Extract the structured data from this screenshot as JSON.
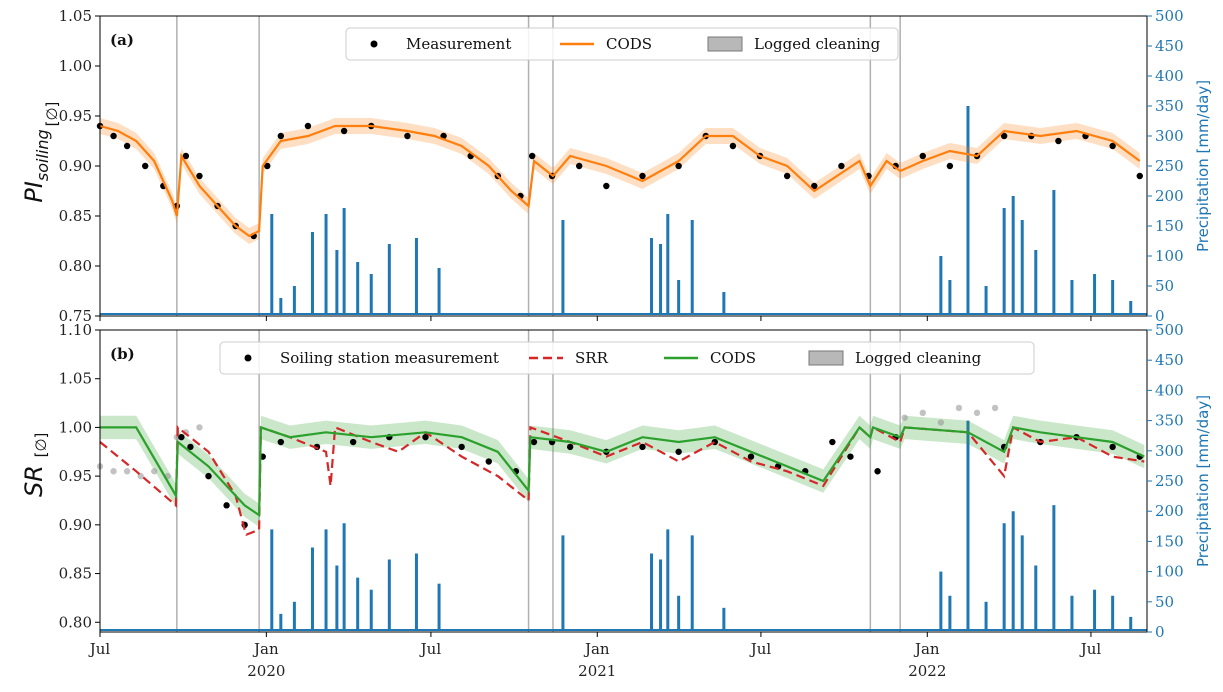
{
  "colors": {
    "measurement": "#000000",
    "cods_a": "#ff7f0e",
    "cods_b": "#2ca02c",
    "srr": "#d62728",
    "precip": "#1f77b4",
    "cleaning": "#b0b0b0",
    "ghost": "#9a9a9a"
  },
  "x_axis": {
    "ticks": [
      {
        "label": "Jul",
        "year": "",
        "day": 0
      },
      {
        "label": "Jan",
        "year": "2020",
        "day": 184
      },
      {
        "label": "Jul",
        "year": "",
        "day": 366
      },
      {
        "label": "Jan",
        "year": "2021",
        "day": 550
      },
      {
        "label": "Jul",
        "year": "",
        "day": 731
      },
      {
        "label": "Jan",
        "year": "2022",
        "day": 915
      },
      {
        "label": "Jul",
        "year": "",
        "day": 1096
      }
    ],
    "range_days": [
      0,
      1158
    ]
  },
  "chart_data": [
    {
      "type": "scatter",
      "panel_label": "(a)",
      "ylabel": "PI",
      "ylabel_sub": "soiling",
      "ylabel_unit": "[∅]",
      "ylim": [
        0.75,
        1.05
      ],
      "yticks": [
        "0.75",
        "0.80",
        "0.85",
        "0.90",
        "0.95",
        "1.00",
        "1.05"
      ],
      "y2label": "Precipitation [mm/day]",
      "y2lim": [
        0,
        500
      ],
      "y2ticks": [
        "0",
        "50",
        "100",
        "150",
        "200",
        "250",
        "300",
        "350",
        "400",
        "450",
        "500"
      ],
      "legend": [
        {
          "kind": "dot",
          "label": "Measurement"
        },
        {
          "kind": "line",
          "label": "CODS"
        },
        {
          "kind": "patch",
          "label": "Logged cleaning"
        }
      ],
      "cleaning_days": [
        85,
        176,
        474,
        501,
        852,
        885
      ],
      "series": [
        {
          "name": "Measurement",
          "kind": "points",
          "x": [
            0,
            15,
            30,
            50,
            70,
            85,
            95,
            110,
            130,
            150,
            170,
            185,
            200,
            230,
            270,
            300,
            340,
            380,
            410,
            440,
            465,
            478,
            500,
            530,
            560,
            600,
            640,
            670,
            700,
            730,
            760,
            790,
            820,
            850,
            880,
            910,
            940,
            970,
            1000,
            1030,
            1060,
            1090,
            1120,
            1150
          ],
          "y": [
            0.94,
            0.93,
            0.92,
            0.9,
            0.88,
            0.86,
            0.91,
            0.89,
            0.86,
            0.84,
            0.83,
            0.9,
            0.93,
            0.94,
            0.935,
            0.94,
            0.93,
            0.93,
            0.91,
            0.89,
            0.87,
            0.91,
            0.89,
            0.9,
            0.88,
            0.89,
            0.9,
            0.93,
            0.92,
            0.91,
            0.89,
            0.88,
            0.9,
            0.89,
            0.9,
            0.91,
            0.9,
            0.91,
            0.93,
            0.93,
            0.925,
            0.93,
            0.92,
            0.89
          ]
        },
        {
          "name": "CODS",
          "kind": "line",
          "x": [
            0,
            20,
            40,
            60,
            80,
            85,
            90,
            110,
            130,
            150,
            165,
            176,
            180,
            200,
            230,
            260,
            300,
            340,
            370,
            400,
            430,
            455,
            474,
            480,
            501,
            520,
            560,
            600,
            640,
            670,
            700,
            730,
            760,
            790,
            815,
            840,
            852,
            870,
            885,
            910,
            940,
            970,
            1000,
            1040,
            1080,
            1120,
            1150
          ],
          "y": [
            0.94,
            0.935,
            0.925,
            0.905,
            0.865,
            0.85,
            0.91,
            0.88,
            0.86,
            0.84,
            0.83,
            0.835,
            0.9,
            0.925,
            0.93,
            0.94,
            0.94,
            0.935,
            0.93,
            0.92,
            0.9,
            0.875,
            0.86,
            0.905,
            0.89,
            0.91,
            0.9,
            0.885,
            0.905,
            0.93,
            0.93,
            0.91,
            0.9,
            0.875,
            0.89,
            0.905,
            0.88,
            0.905,
            0.895,
            0.905,
            0.915,
            0.91,
            0.935,
            0.93,
            0.935,
            0.925,
            0.905
          ]
        },
        {
          "name": "Precipitation",
          "kind": "bars",
          "axis": "right",
          "x": [
            190,
            200,
            215,
            235,
            250,
            262,
            270,
            285,
            300,
            320,
            350,
            375,
            512,
            545,
            610,
            620,
            628,
            640,
            655,
            690,
            930,
            940,
            960,
            980,
            1000,
            1010,
            1020,
            1035,
            1055,
            1075,
            1100,
            1120,
            1140
          ],
          "y": [
            170,
            30,
            50,
            140,
            170,
            110,
            180,
            90,
            70,
            120,
            130,
            80,
            160,
            5,
            130,
            120,
            170,
            60,
            160,
            40,
            100,
            60,
            350,
            50,
            180,
            200,
            160,
            110,
            210,
            60,
            70,
            60,
            25
          ]
        }
      ]
    },
    {
      "type": "scatter",
      "panel_label": "(b)",
      "ylabel": "SR",
      "ylabel_sub": "",
      "ylabel_unit": "[∅]",
      "ylim": [
        0.79,
        1.1
      ],
      "yticks": [
        "0.80",
        "0.85",
        "0.90",
        "0.95",
        "1.00",
        "1.05",
        "1.10"
      ],
      "y2label": "Precipitation [mm/day]",
      "y2lim": [
        0,
        500
      ],
      "y2ticks": [
        "0",
        "50",
        "100",
        "150",
        "200",
        "250",
        "300",
        "350",
        "400",
        "450",
        "500"
      ],
      "legend": [
        {
          "kind": "dot",
          "label": "Soiling station measurement"
        },
        {
          "kind": "dash",
          "label": "SRR"
        },
        {
          "kind": "line",
          "label": "CODS"
        },
        {
          "kind": "patch",
          "label": "Logged cleaning"
        }
      ],
      "cleaning_days": [
        85,
        176,
        474,
        501,
        852,
        885
      ],
      "series": [
        {
          "name": "Soiling station measurement",
          "kind": "points",
          "x": [
            90,
            100,
            120,
            140,
            160,
            180,
            200,
            240,
            280,
            320,
            360,
            400,
            430,
            460,
            480,
            500,
            520,
            560,
            600,
            640,
            680,
            720,
            750,
            780,
            810,
            830,
            860,
            880,
            1000,
            1040,
            1080,
            1120,
            1150
          ],
          "y": [
            0.99,
            0.98,
            0.95,
            0.92,
            0.9,
            0.97,
            0.985,
            0.98,
            0.985,
            0.99,
            0.99,
            0.98,
            0.965,
            0.955,
            0.985,
            0.985,
            0.98,
            0.975,
            0.98,
            0.975,
            0.985,
            0.97,
            0.96,
            0.955,
            0.985,
            0.97,
            0.955,
            0.99,
            0.98,
            0.985,
            0.99,
            0.98,
            0.97
          ]
        },
        {
          "name": "Ghost",
          "kind": "ghost",
          "x": [
            0,
            15,
            30,
            45,
            60,
            75,
            85,
            95,
            110,
            890,
            910,
            930,
            950,
            970,
            990
          ],
          "y": [
            0.96,
            0.955,
            0.955,
            0.95,
            0.955,
            0.95,
            0.99,
            0.995,
            1.0,
            1.01,
            1.015,
            1.005,
            1.02,
            1.015,
            1.02
          ]
        },
        {
          "name": "SRR",
          "kind": "dash",
          "x": [
            0,
            40,
            84,
            86,
            120,
            150,
            160,
            162,
            176,
            178,
            210,
            250,
            255,
            260,
            300,
            330,
            360,
            400,
            440,
            474,
            476,
            520,
            560,
            600,
            640,
            680,
            720,
            760,
            800,
            840,
            852,
            855,
            885,
            890,
            960,
            1000,
            1010,
            1040,
            1080,
            1120,
            1155
          ],
          "y": [
            0.985,
            0.955,
            0.92,
            1.0,
            0.975,
            0.93,
            0.895,
            0.89,
            0.895,
            1.0,
            0.99,
            0.975,
            0.94,
            1.0,
            0.985,
            0.975,
            0.995,
            0.97,
            0.95,
            0.925,
            1.0,
            0.985,
            0.97,
            0.985,
            0.965,
            0.985,
            0.965,
            0.955,
            0.94,
            1.0,
            0.99,
            1.0,
            0.985,
            1.0,
            0.995,
            0.95,
            1.0,
            0.985,
            0.99,
            0.97,
            0.965
          ]
        },
        {
          "name": "CODS",
          "kind": "line",
          "x": [
            0,
            40,
            84,
            86,
            120,
            150,
            160,
            176,
            178,
            210,
            250,
            300,
            360,
            400,
            440,
            474,
            476,
            520,
            560,
            600,
            640,
            680,
            720,
            760,
            800,
            840,
            852,
            855,
            885,
            890,
            960,
            1000,
            1010,
            1040,
            1080,
            1120,
            1155
          ],
          "y": [
            1.0,
            1.0,
            0.93,
            0.985,
            0.96,
            0.93,
            0.92,
            0.91,
            1.0,
            0.99,
            0.995,
            0.99,
            0.995,
            0.99,
            0.975,
            0.935,
            0.99,
            0.985,
            0.975,
            0.99,
            0.985,
            0.99,
            0.975,
            0.96,
            0.945,
            1.0,
            0.99,
            1.0,
            0.99,
            1.0,
            0.995,
            0.975,
            1.0,
            0.995,
            0.99,
            0.985,
            0.97
          ]
        },
        {
          "name": "Precipitation",
          "kind": "bars",
          "axis": "right",
          "x": [
            190,
            200,
            215,
            235,
            250,
            262,
            270,
            285,
            300,
            320,
            350,
            375,
            512,
            545,
            610,
            620,
            628,
            640,
            655,
            690,
            930,
            940,
            960,
            980,
            1000,
            1010,
            1020,
            1035,
            1055,
            1075,
            1100,
            1120,
            1140
          ],
          "y": [
            170,
            30,
            50,
            140,
            170,
            110,
            180,
            90,
            70,
            120,
            130,
            80,
            160,
            5,
            130,
            120,
            170,
            60,
            160,
            40,
            100,
            60,
            350,
            50,
            180,
            200,
            160,
            110,
            210,
            60,
            70,
            60,
            25
          ]
        }
      ]
    }
  ]
}
